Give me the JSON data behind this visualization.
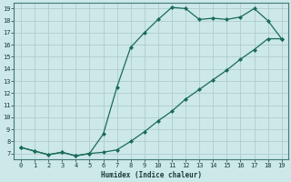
{
  "xlabel": "Humidex (Indice chaleur)",
  "background_color": "#cce8e8",
  "grid_color": "#b0cccc",
  "line_color": "#1a6b5a",
  "xlim": [
    -0.5,
    19.5
  ],
  "ylim": [
    6.5,
    19.5
  ],
  "xticks": [
    0,
    1,
    2,
    3,
    4,
    5,
    6,
    7,
    8,
    9,
    10,
    11,
    12,
    13,
    14,
    15,
    16,
    17,
    18,
    19
  ],
  "yticks": [
    7,
    8,
    9,
    10,
    11,
    12,
    13,
    14,
    15,
    16,
    17,
    18,
    19
  ],
  "curve1_x": [
    0,
    1,
    2,
    3,
    4,
    5,
    6,
    7,
    8,
    9,
    10,
    11,
    12,
    13,
    14,
    15,
    16,
    17,
    18,
    19
  ],
  "curve1_y": [
    7.5,
    7.2,
    6.9,
    7.1,
    6.8,
    7.0,
    8.6,
    12.5,
    15.8,
    17.0,
    18.1,
    19.1,
    19.0,
    18.1,
    18.2,
    18.1,
    18.3,
    19.0,
    18.0,
    16.5
  ],
  "curve2_x": [
    0,
    1,
    2,
    3,
    4,
    5,
    6,
    7,
    8,
    9,
    10,
    11,
    12,
    13,
    14,
    15,
    16,
    17,
    18,
    19
  ],
  "curve2_y": [
    7.5,
    7.2,
    6.9,
    7.1,
    6.8,
    7.0,
    7.1,
    7.3,
    8.0,
    8.8,
    9.7,
    10.5,
    11.5,
    12.3,
    13.1,
    13.9,
    14.8,
    15.6,
    16.5,
    16.5
  ]
}
